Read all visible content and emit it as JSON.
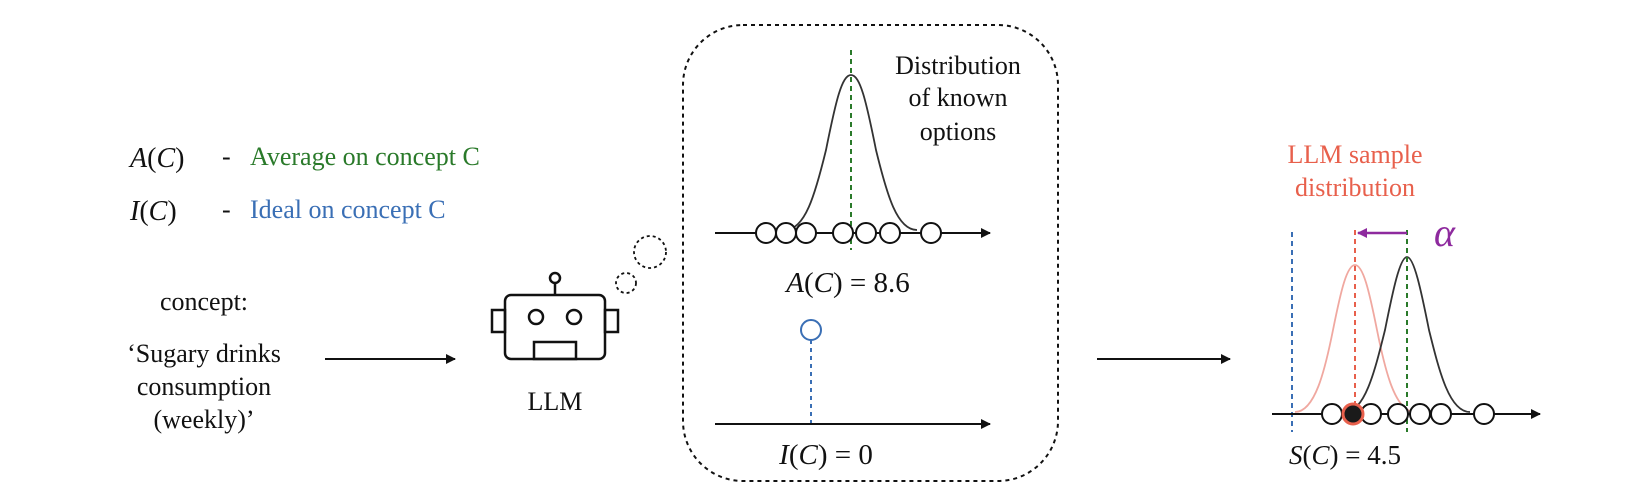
{
  "colors": {
    "text": "#111111",
    "average": "#2a7a2a",
    "ideal": "#3a6fb5",
    "llm": "#e8604c",
    "llm_curve": "#f0a8a0",
    "alpha": "#8e2a9e",
    "axis": "#111111"
  },
  "legend": {
    "average": {
      "symbol_fn": "A",
      "symbol_arg": "C",
      "dash": "-",
      "text": "Average on concept C"
    },
    "ideal": {
      "symbol_fn": "I",
      "symbol_arg": "C",
      "dash": "-",
      "text": "Ideal on concept C"
    }
  },
  "input": {
    "heading": "concept:",
    "line1": "‘Sugary drinks",
    "line2": "consumption",
    "line3": "(weekly)’"
  },
  "robot": {
    "label": "LLM",
    "icon": "robot-icon",
    "thought_icon": "thought-bubble-icon"
  },
  "bubble": {
    "title_line1": "Distribution",
    "title_line2": "of known",
    "title_line3": "options",
    "average_fn": "A",
    "average_arg": "C",
    "average_value": "= 8.6",
    "ideal_fn": "I",
    "ideal_arg": "C",
    "ideal_value": "= 0"
  },
  "output": {
    "title_line1": "LLM sample",
    "title_line2": "distribution",
    "alpha": "α",
    "sample_fn": "S",
    "sample_arg": "C",
    "sample_value": "= 4.5"
  }
}
